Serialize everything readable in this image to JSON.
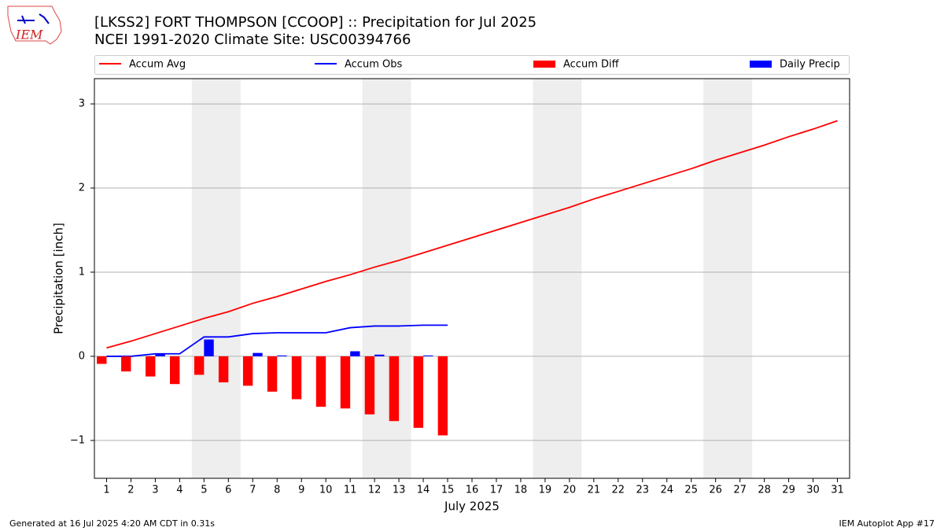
{
  "logo_text": "IEM",
  "footer_left": "Generated at 16 Jul 2025 4:20 AM CDT in 0.31s",
  "footer_right": "IEM Autoplot App #17",
  "chart_data": {
    "type": "combo",
    "title": "[LKSS2] FORT THOMPSON [CCOOP] :: Precipitation for Jul 2025",
    "subtitle": "NCEI 1991-2020 Climate Site: USC00394766",
    "x_label": "July 2025",
    "y_label": "Precipitation [inch]",
    "x": [
      1,
      2,
      3,
      4,
      5,
      6,
      7,
      8,
      9,
      10,
      11,
      12,
      13,
      14,
      15,
      16,
      17,
      18,
      19,
      20,
      21,
      22,
      23,
      24,
      25,
      26,
      27,
      28,
      29,
      30,
      31
    ],
    "xlim": [
      0.5,
      31.5
    ],
    "xticks": [
      1,
      2,
      3,
      4,
      5,
      6,
      7,
      8,
      9,
      10,
      11,
      12,
      13,
      14,
      15,
      16,
      17,
      18,
      19,
      20,
      21,
      22,
      23,
      24,
      25,
      26,
      27,
      28,
      29,
      30,
      31
    ],
    "ylim": [
      -1.45,
      3.3
    ],
    "yticks": [
      {
        "value": -1,
        "label": "−1"
      },
      0,
      1,
      2,
      3
    ],
    "grid": true,
    "weekend_spans": [
      [
        4.5,
        6.5
      ],
      [
        11.5,
        13.5
      ],
      [
        18.5,
        20.5
      ],
      [
        25.5,
        27.5
      ]
    ],
    "weekend_color": "#eeeeee",
    "series": [
      {
        "name": "Accum Avg",
        "kind": "line",
        "color": "#ff0000",
        "values": [
          0.1,
          0.18,
          0.27,
          0.36,
          0.45,
          0.53,
          0.63,
          0.71,
          0.8,
          0.89,
          0.97,
          1.06,
          1.14,
          1.23,
          1.32,
          1.41,
          1.5,
          1.59,
          1.68,
          1.77,
          1.87,
          1.96,
          2.05,
          2.14,
          2.23,
          2.33,
          2.42,
          2.51,
          2.61,
          2.7,
          2.8
        ]
      },
      {
        "name": "Accum Obs",
        "kind": "line",
        "color": "#0000ff",
        "values": [
          0,
          0,
          0.03,
          0.03,
          0.23,
          0.23,
          0.27,
          0.28,
          0.28,
          0.28,
          0.34,
          0.36,
          0.36,
          0.37,
          0.37,
          null,
          null,
          null,
          null,
          null,
          null,
          null,
          null,
          null,
          null,
          null,
          null,
          null,
          null,
          null,
          null
        ]
      },
      {
        "name": "Accum Diff",
        "kind": "bar",
        "color": "#ff0000",
        "values": [
          -0.09,
          -0.18,
          -0.24,
          -0.33,
          -0.22,
          -0.31,
          -0.35,
          -0.42,
          -0.51,
          -0.6,
          -0.62,
          -0.69,
          -0.77,
          -0.85,
          -0.94,
          null,
          null,
          null,
          null,
          null,
          null,
          null,
          null,
          null,
          null,
          null,
          null,
          null,
          null,
          null,
          null
        ]
      },
      {
        "name": "Daily Precip",
        "kind": "bar",
        "color": "#0000ff",
        "values": [
          0,
          0,
          0.03,
          0,
          0.2,
          0,
          0.04,
          0.01,
          0,
          0,
          0.06,
          0.02,
          0,
          0.01,
          0,
          null,
          null,
          null,
          null,
          null,
          null,
          null,
          null,
          null,
          null,
          null,
          null,
          null,
          null,
          null,
          null
        ]
      }
    ]
  }
}
